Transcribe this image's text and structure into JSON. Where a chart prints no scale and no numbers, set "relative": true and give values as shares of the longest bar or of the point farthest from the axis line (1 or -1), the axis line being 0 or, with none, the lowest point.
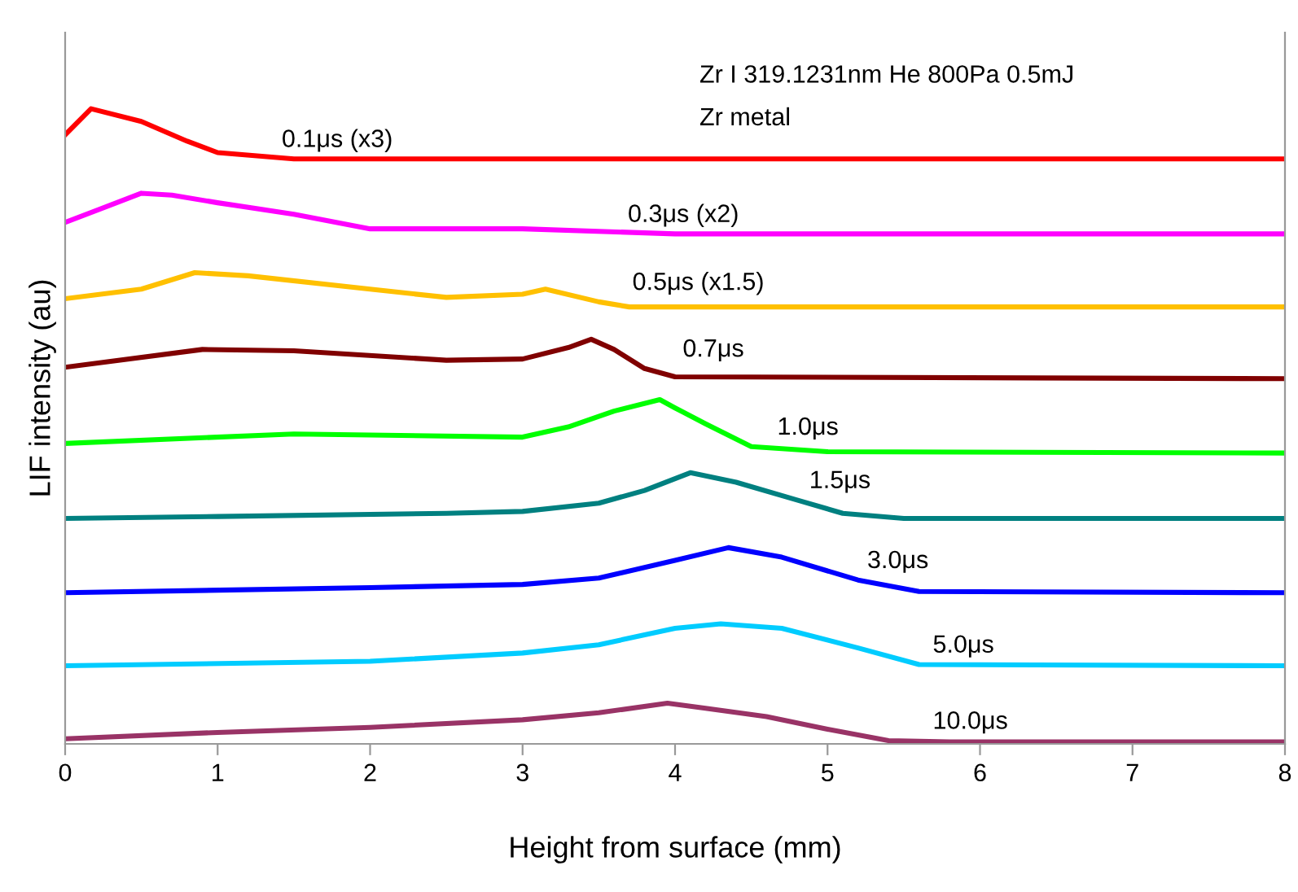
{
  "chart_data": {
    "type": "line",
    "relative": true,
    "xlabel": "Height from surface (mm)",
    "ylabel": "LIF intensity (au)",
    "annotations": [
      "Zr I 319.1231nm He 800Pa 0.5mJ",
      "Zr metal"
    ],
    "xlim": [
      0,
      8
    ],
    "xticks": [
      0,
      1,
      2,
      3,
      4,
      5,
      6,
      7,
      8
    ],
    "grid": false,
    "legend": false,
    "marker": "none",
    "line_style": "solid",
    "series": [
      {
        "name": "0.1μs (x3)",
        "color": "#ff0000",
        "x": [
          0,
          0.17,
          0.5,
          0.8,
          1.0,
          1.5,
          8
        ],
        "values": [
          0.959,
          1.0,
          0.98,
          0.949,
          0.931,
          0.921,
          0.921
        ]
      },
      {
        "name": "0.3μs (x2)",
        "color": "#ff00ff",
        "x": [
          0,
          0.5,
          0.7,
          1.0,
          1.5,
          2.0,
          3.0,
          4.0,
          8
        ],
        "values": [
          0.821,
          0.867,
          0.864,
          0.852,
          0.834,
          0.811,
          0.811,
          0.803,
          0.803
        ]
      },
      {
        "name": "0.5μs (x1.5)",
        "color": "#ffc000",
        "x": [
          0,
          0.5,
          0.85,
          1.2,
          2.0,
          2.5,
          3.0,
          3.15,
          3.5,
          3.7,
          8
        ],
        "values": [
          0.701,
          0.716,
          0.742,
          0.737,
          0.716,
          0.703,
          0.708,
          0.716,
          0.696,
          0.688,
          0.688
        ]
      },
      {
        "name": "0.7μs",
        "color": "#800000",
        "x": [
          0,
          0.9,
          1.5,
          2.5,
          3.0,
          3.3,
          3.45,
          3.6,
          3.8,
          4.0,
          8
        ],
        "values": [
          0.593,
          0.621,
          0.619,
          0.604,
          0.606,
          0.624,
          0.637,
          0.621,
          0.591,
          0.578,
          0.575
        ]
      },
      {
        "name": "1.0μs",
        "color": "#00ff00",
        "x": [
          0,
          1.5,
          3.0,
          3.3,
          3.6,
          3.9,
          4.0,
          4.2,
          4.5,
          5.0,
          8
        ],
        "values": [
          0.473,
          0.488,
          0.483,
          0.499,
          0.524,
          0.542,
          0.529,
          0.504,
          0.468,
          0.46,
          0.458
        ]
      },
      {
        "name": "1.5μs",
        "color": "#008080",
        "x": [
          0,
          1.0,
          2.5,
          3.0,
          3.5,
          3.8,
          4.1,
          4.4,
          4.8,
          5.1,
          5.5,
          8
        ],
        "values": [
          0.355,
          0.358,
          0.363,
          0.366,
          0.379,
          0.399,
          0.427,
          0.412,
          0.384,
          0.363,
          0.355,
          0.355
        ]
      },
      {
        "name": "3.0μs",
        "color": "#0000ff",
        "x": [
          0,
          2.0,
          3.0,
          3.5,
          4.0,
          4.35,
          4.7,
          5.2,
          5.6,
          8
        ],
        "values": [
          0.238,
          0.246,
          0.251,
          0.261,
          0.289,
          0.309,
          0.294,
          0.258,
          0.24,
          0.238
        ]
      },
      {
        "name": "5.0μs",
        "color": "#00ccff",
        "x": [
          0,
          2.0,
          3.0,
          3.5,
          4.0,
          4.3,
          4.7,
          5.2,
          5.6,
          8
        ],
        "values": [
          0.123,
          0.13,
          0.143,
          0.156,
          0.182,
          0.189,
          0.182,
          0.151,
          0.125,
          0.123
        ]
      },
      {
        "name": "10.0μs",
        "color": "#993366",
        "x": [
          0,
          1.0,
          2.0,
          3.0,
          3.5,
          3.95,
          4.2,
          4.6,
          5.0,
          5.4,
          5.8,
          8
        ],
        "values": [
          0.008,
          0.018,
          0.026,
          0.038,
          0.049,
          0.064,
          0.056,
          0.043,
          0.023,
          0.005,
          0.003,
          0.003
        ]
      }
    ]
  }
}
